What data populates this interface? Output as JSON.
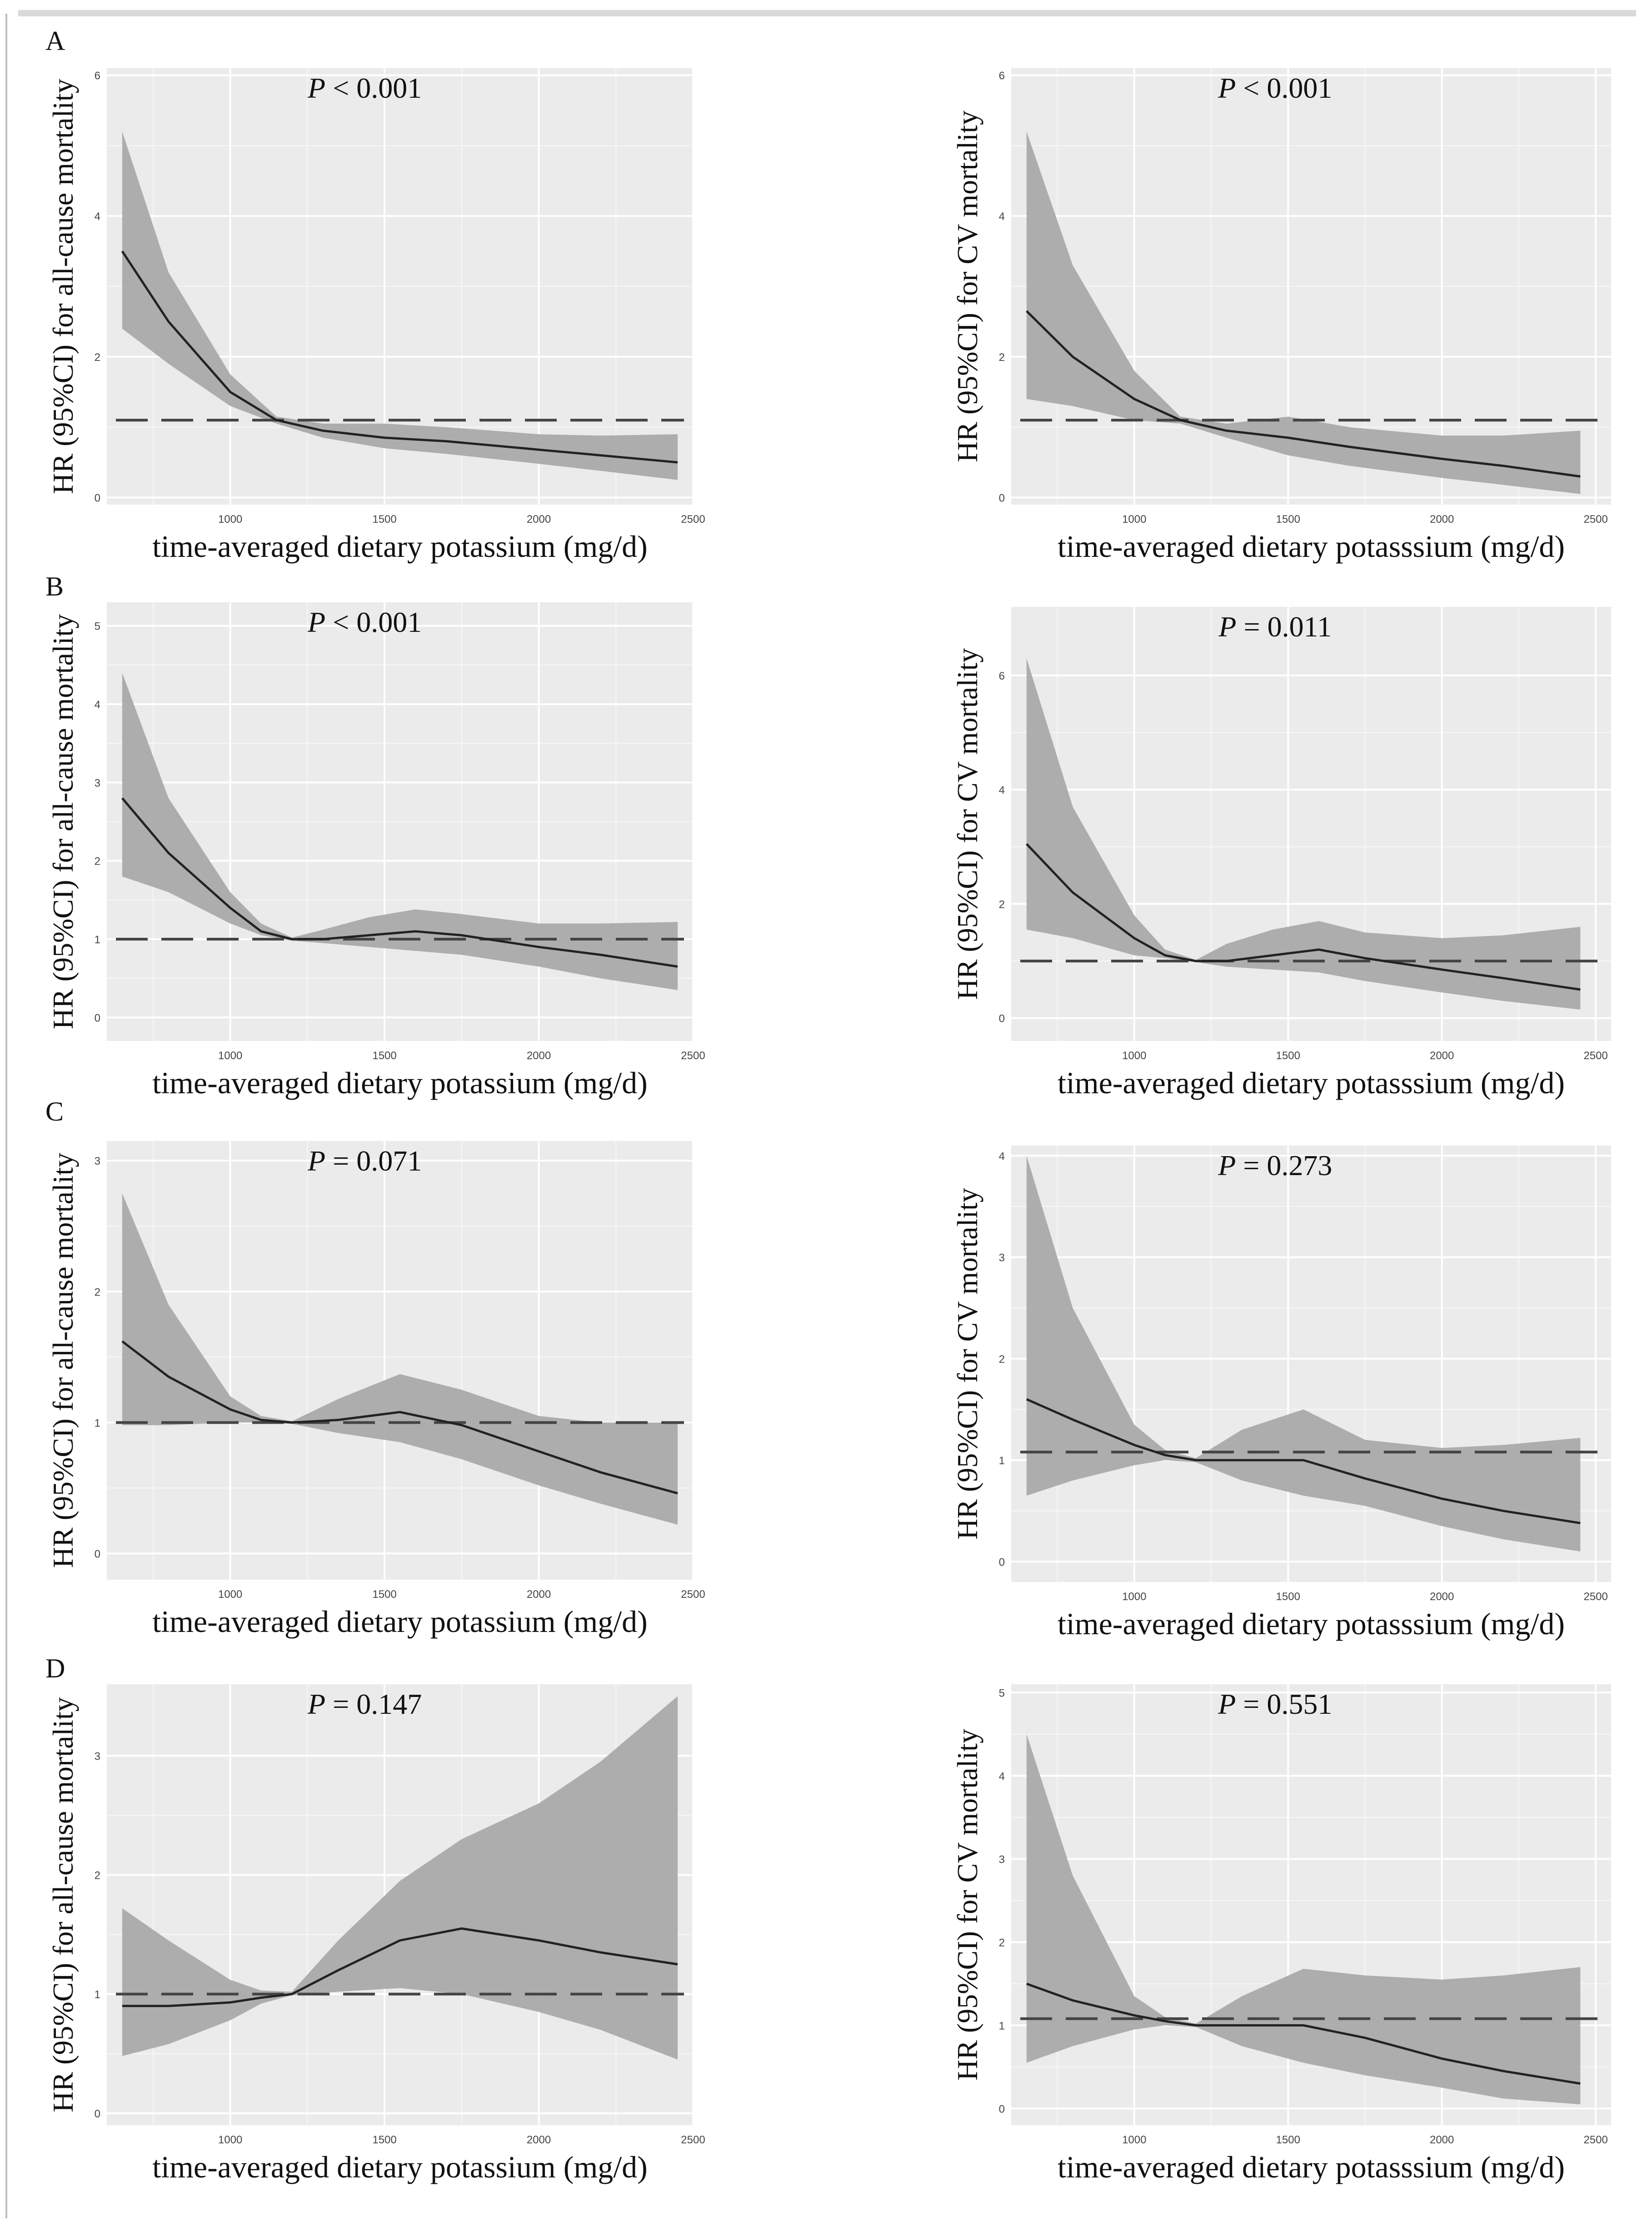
{
  "figure": {
    "colors": {
      "panel_bg": "#ebebeb",
      "grid_major": "#ffffff",
      "ci_band": "#aaaaaa",
      "curve": "#222222",
      "reference": "#444444",
      "text": "#111111",
      "tick_text": "#444444"
    }
  },
  "chart_data": [
    {
      "type": "line",
      "panel": "A",
      "row_label": "A",
      "p_label": "P",
      "p_text": " < 0.001",
      "xlabel": "time-averaged dietary potassium (mg/d)",
      "ylabel": "HR (95%CI) for all-cause mortality",
      "xlim": [
        600,
        2500
      ],
      "ylim": [
        -0.1,
        6.1
      ],
      "xticks": [
        1000,
        1500,
        2000,
        2500
      ],
      "yticks": [
        0,
        2,
        4,
        6
      ],
      "reference_hr": 1.1,
      "x": [
        650,
        800,
        1000,
        1150,
        1300,
        1500,
        1700,
        2000,
        2200,
        2450
      ],
      "series": [
        {
          "name": "HR",
          "values": [
            3.5,
            2.5,
            1.5,
            1.1,
            0.95,
            0.85,
            0.8,
            0.68,
            0.6,
            0.5
          ]
        },
        {
          "name": "CI upper",
          "values": [
            5.2,
            3.2,
            1.75,
            1.15,
            1.05,
            1.05,
            1.0,
            0.9,
            0.88,
            0.9
          ]
        },
        {
          "name": "CI lower",
          "values": [
            2.4,
            1.9,
            1.3,
            1.05,
            0.85,
            0.7,
            0.62,
            0.48,
            0.38,
            0.25
          ]
        }
      ]
    },
    {
      "type": "line",
      "panel": "A-CV",
      "row_label": "",
      "p_label": "P",
      "p_text": " < 0.001",
      "xlabel": "time-averaged dietary potasssium (mg/d)",
      "ylabel": "HR (95%CI) for CV mortality",
      "xlim": [
        600,
        2550
      ],
      "ylim": [
        -0.1,
        6.1
      ],
      "xticks": [
        1000,
        1500,
        2000,
        2500
      ],
      "yticks": [
        0,
        2,
        4,
        6
      ],
      "reference_hr": 1.1,
      "x": [
        650,
        800,
        1000,
        1150,
        1300,
        1500,
        1700,
        2000,
        2200,
        2450
      ],
      "series": [
        {
          "name": "HR",
          "values": [
            2.65,
            2.0,
            1.4,
            1.1,
            0.95,
            0.85,
            0.72,
            0.55,
            0.45,
            0.3
          ]
        },
        {
          "name": "CI upper",
          "values": [
            5.2,
            3.3,
            1.8,
            1.15,
            1.05,
            1.15,
            1.0,
            0.88,
            0.88,
            0.95
          ]
        },
        {
          "name": "CI lower",
          "values": [
            1.4,
            1.3,
            1.1,
            1.05,
            0.85,
            0.6,
            0.45,
            0.28,
            0.18,
            0.05
          ]
        }
      ]
    },
    {
      "type": "line",
      "panel": "B",
      "row_label": "B",
      "p_label": "P",
      "p_text": " < 0.001",
      "xlabel": "time-averaged dietary potassium (mg/d)",
      "ylabel": "HR (95%CI) for all-cause mortality",
      "xlim": [
        600,
        2500
      ],
      "ylim": [
        -0.3,
        5.3
      ],
      "xticks": [
        1000,
        1500,
        2000,
        2500
      ],
      "yticks": [
        0,
        1,
        2,
        3,
        4,
        5
      ],
      "reference_hr": 1.0,
      "x": [
        650,
        800,
        1000,
        1100,
        1200,
        1300,
        1450,
        1600,
        1750,
        2000,
        2200,
        2450
      ],
      "series": [
        {
          "name": "HR",
          "values": [
            2.8,
            2.1,
            1.4,
            1.1,
            1.0,
            1.0,
            1.05,
            1.1,
            1.05,
            0.9,
            0.8,
            0.65
          ]
        },
        {
          "name": "CI upper",
          "values": [
            4.4,
            2.8,
            1.6,
            1.2,
            1.02,
            1.12,
            1.28,
            1.38,
            1.32,
            1.2,
            1.2,
            1.22
          ]
        },
        {
          "name": "CI lower",
          "values": [
            1.8,
            1.6,
            1.2,
            1.05,
            0.98,
            0.95,
            0.9,
            0.85,
            0.8,
            0.65,
            0.5,
            0.35
          ]
        }
      ]
    },
    {
      "type": "line",
      "panel": "B-CV",
      "row_label": "",
      "p_label": "P",
      "p_text": " = 0.011",
      "xlabel": "time-averaged dietary potasssium (mg/d)",
      "ylabel": "HR (95%CI) for CV mortality",
      "xlim": [
        600,
        2550
      ],
      "ylim": [
        -0.4,
        7.2
      ],
      "xticks": [
        1000,
        1500,
        2000,
        2500
      ],
      "yticks": [
        0,
        2,
        4,
        6
      ],
      "reference_hr": 1.0,
      "x": [
        650,
        800,
        1000,
        1100,
        1200,
        1300,
        1450,
        1600,
        1750,
        2000,
        2200,
        2450
      ],
      "series": [
        {
          "name": "HR",
          "values": [
            3.05,
            2.2,
            1.4,
            1.1,
            1.0,
            1.0,
            1.1,
            1.2,
            1.05,
            0.85,
            0.7,
            0.5
          ]
        },
        {
          "name": "CI upper",
          "values": [
            6.3,
            3.7,
            1.8,
            1.2,
            1.02,
            1.3,
            1.55,
            1.7,
            1.5,
            1.4,
            1.45,
            1.6
          ]
        },
        {
          "name": "CI lower",
          "values": [
            1.55,
            1.4,
            1.1,
            1.05,
            0.98,
            0.9,
            0.85,
            0.8,
            0.65,
            0.45,
            0.3,
            0.15
          ]
        }
      ]
    },
    {
      "type": "line",
      "panel": "C",
      "row_label": "C",
      "p_label": "P",
      "p_text": " = 0.071",
      "xlabel": "time-averaged dietary potassium (mg/d)",
      "ylabel": "HR (95%CI) for all-cause mortality",
      "xlim": [
        600,
        2500
      ],
      "ylim": [
        -0.2,
        3.15
      ],
      "xticks": [
        1000,
        1500,
        2000,
        2500
      ],
      "yticks": [
        0,
        1,
        2,
        3
      ],
      "reference_hr": 1.0,
      "x": [
        650,
        800,
        1000,
        1100,
        1200,
        1350,
        1550,
        1750,
        2000,
        2200,
        2450
      ],
      "series": [
        {
          "name": "HR",
          "values": [
            1.62,
            1.35,
            1.1,
            1.02,
            1.0,
            1.02,
            1.08,
            0.98,
            0.78,
            0.62,
            0.46
          ]
        },
        {
          "name": "CI upper",
          "values": [
            2.75,
            1.9,
            1.2,
            1.05,
            1.01,
            1.18,
            1.37,
            1.25,
            1.05,
            1.0,
            1.0
          ]
        },
        {
          "name": "CI lower",
          "values": [
            0.98,
            0.98,
            1.0,
            1.0,
            0.99,
            0.92,
            0.85,
            0.72,
            0.52,
            0.38,
            0.22
          ]
        }
      ]
    },
    {
      "type": "line",
      "panel": "C-CV",
      "row_label": "",
      "p_label": "P",
      "p_text": " = 0.273",
      "xlabel": "time-averaged dietary potasssium (mg/d)",
      "ylabel": "HR (95%CI) for CV mortality",
      "xlim": [
        600,
        2550
      ],
      "ylim": [
        -0.2,
        4.1
      ],
      "xticks": [
        1000,
        1500,
        2000,
        2500
      ],
      "yticks": [
        0,
        1,
        2,
        3,
        4
      ],
      "reference_hr": 1.08,
      "x": [
        650,
        800,
        1000,
        1100,
        1200,
        1350,
        1550,
        1750,
        2000,
        2200,
        2450
      ],
      "series": [
        {
          "name": "HR",
          "values": [
            1.6,
            1.4,
            1.15,
            1.05,
            1.0,
            1.0,
            1.0,
            0.82,
            0.62,
            0.5,
            0.38
          ]
        },
        {
          "name": "CI upper",
          "values": [
            4.0,
            2.5,
            1.35,
            1.1,
            1.02,
            1.3,
            1.5,
            1.2,
            1.12,
            1.15,
            1.22
          ]
        },
        {
          "name": "CI lower",
          "values": [
            0.65,
            0.8,
            0.95,
            1.0,
            0.98,
            0.8,
            0.65,
            0.55,
            0.35,
            0.22,
            0.1
          ]
        }
      ]
    },
    {
      "type": "line",
      "panel": "D",
      "row_label": "D",
      "p_label": "P",
      "p_text": " = 0.147",
      "xlabel": "time-averaged dietary potassium (mg/d)",
      "ylabel": "HR (95%CI) for all-cause mortality",
      "xlim": [
        600,
        2500
      ],
      "ylim": [
        -0.1,
        3.6
      ],
      "xticks": [
        1000,
        1500,
        2000,
        2500
      ],
      "yticks": [
        0,
        1,
        2,
        3
      ],
      "reference_hr": 1.0,
      "x": [
        650,
        800,
        1000,
        1100,
        1200,
        1350,
        1550,
        1750,
        2000,
        2200,
        2450
      ],
      "series": [
        {
          "name": "HR",
          "values": [
            0.9,
            0.9,
            0.93,
            0.97,
            1.0,
            1.2,
            1.45,
            1.55,
            1.45,
            1.35,
            1.25
          ]
        },
        {
          "name": "CI upper",
          "values": [
            1.72,
            1.45,
            1.12,
            1.03,
            1.02,
            1.45,
            1.95,
            2.3,
            2.6,
            2.95,
            3.5
          ]
        },
        {
          "name": "CI lower",
          "values": [
            0.48,
            0.58,
            0.78,
            0.92,
            0.99,
            1.02,
            1.05,
            1.0,
            0.85,
            0.7,
            0.45
          ]
        }
      ]
    },
    {
      "type": "line",
      "panel": "D-CV",
      "row_label": "",
      "p_label": "P",
      "p_text": " = 0.551",
      "xlabel": "time-averaged dietary potasssium (mg/d)",
      "ylabel": "HR (95%CI) for CV mortality",
      "xlim": [
        600,
        2550
      ],
      "ylim": [
        -0.2,
        5.1
      ],
      "xticks": [
        1000,
        1500,
        2000,
        2500
      ],
      "yticks": [
        0,
        1,
        2,
        3,
        4,
        5
      ],
      "reference_hr": 1.08,
      "x": [
        650,
        800,
        1000,
        1100,
        1200,
        1350,
        1550,
        1750,
        2000,
        2200,
        2450
      ],
      "series": [
        {
          "name": "HR",
          "values": [
            1.5,
            1.3,
            1.12,
            1.05,
            1.0,
            1.0,
            1.0,
            0.85,
            0.6,
            0.45,
            0.3
          ]
        },
        {
          "name": "CI upper",
          "values": [
            4.5,
            2.8,
            1.35,
            1.1,
            1.02,
            1.35,
            1.68,
            1.6,
            1.55,
            1.6,
            1.7
          ]
        },
        {
          "name": "CI lower",
          "values": [
            0.55,
            0.75,
            0.95,
            1.0,
            0.98,
            0.75,
            0.55,
            0.4,
            0.25,
            0.12,
            0.05
          ]
        }
      ]
    }
  ]
}
